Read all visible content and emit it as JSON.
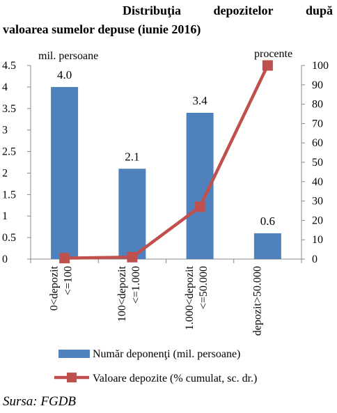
{
  "title": {
    "words_line1": [
      "Distribuţia",
      "depozitelor",
      "după"
    ],
    "line2": "valoarea sumelor depuse (iunie 2016)"
  },
  "source": "Sursa: FGDB",
  "chart_data": {
    "type": "bar",
    "categories": [
      "0<depozit\n<=100",
      "100<depozit\n<=1.000",
      "1.000<depozit\n<=50.000",
      "depozit>50.000"
    ],
    "series": [
      {
        "name": "Număr deponenţi (mil. persoane)",
        "type": "bar",
        "axis": "left",
        "values": [
          4.0,
          2.1,
          3.4,
          0.6
        ],
        "data_labels": [
          "4.0",
          "2.1",
          "3.4",
          "0.6"
        ],
        "color": "#4f81bd"
      },
      {
        "name": "Valoare depozite (% cumulat, sc. dr.)",
        "type": "line",
        "axis": "right",
        "values": [
          0.5,
          1,
          27,
          100
        ],
        "color": "#c0504d"
      }
    ],
    "y_left": {
      "label": "mil. persoane",
      "min": 0,
      "max": 4.5,
      "ticks": [
        "0",
        "0.5",
        "1",
        "1.5",
        "2",
        "2.5",
        "3",
        "3.5",
        "4",
        "4.5"
      ]
    },
    "y_right": {
      "label": "procente",
      "min": 0,
      "max": 100,
      "ticks": [
        "0",
        "10",
        "20",
        "30",
        "40",
        "50",
        "60",
        "70",
        "80",
        "90",
        "100"
      ]
    },
    "grid": false,
    "legend_position": "bottom"
  }
}
